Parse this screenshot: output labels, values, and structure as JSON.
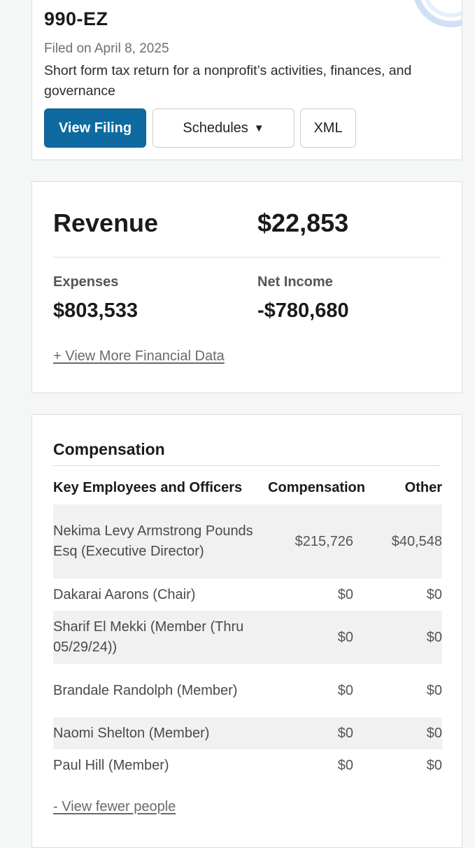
{
  "filing": {
    "form": "990-EZ",
    "filed_date": "Filed on April 8, 2025",
    "description": "Short form tax return for a nonprofit’s activities, finances, and governance",
    "buttons": {
      "view_filing": "View Filing",
      "schedules": "Schedules",
      "schedules_caret": "▼",
      "xml": "XML"
    }
  },
  "financials": {
    "revenue_label": "Revenue",
    "revenue_value": "$22,853",
    "expenses_label": "Expenses",
    "expenses_value": "$803,533",
    "net_income_label": "Net Income",
    "net_income_value": "-$780,680",
    "more_link": "+ View More Financial Data"
  },
  "compensation": {
    "heading": "Compensation",
    "columns": [
      "Key Employees and Officers",
      "Compensation",
      "Other"
    ],
    "rows": [
      {
        "name": "Nekima Levy Armstrong Pounds Esq (Executive Director)",
        "compensation": "$215,726",
        "other": "$40,548"
      },
      {
        "name": "Dakarai Aarons (Chair)",
        "compensation": "$0",
        "other": "$0"
      },
      {
        "name": "Sharif El Mekki (Member (Thru 05/29/24))",
        "compensation": "$0",
        "other": "$0"
      },
      {
        "name": "Brandale Randolph (Member)",
        "compensation": "$0",
        "other": "$0"
      },
      {
        "name": "Naomi Shelton (Member)",
        "compensation": "$0",
        "other": "$0"
      },
      {
        "name": "Paul Hill (Member)",
        "compensation": "$0",
        "other": "$0"
      }
    ],
    "fewer_link": "- View fewer people"
  },
  "colors": {
    "primary_button": "#0e6aa1",
    "page_background": "#f5f7f7",
    "row_shade": "#f1f1f1"
  }
}
